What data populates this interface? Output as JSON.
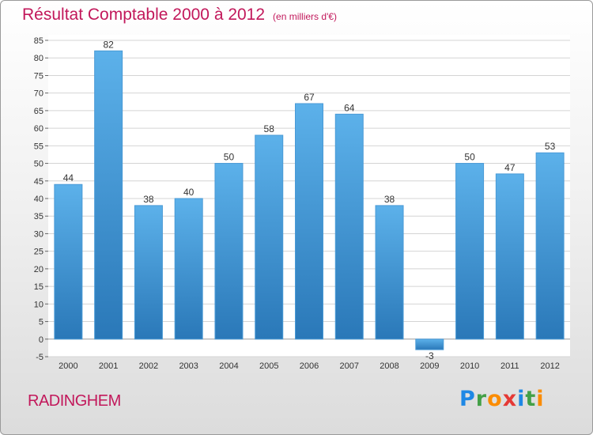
{
  "title": "Résultat Comptable 2000 à 2012",
  "title_unit": "(en milliers d'€)",
  "commune": "RADINGHEM",
  "logo": {
    "letters": [
      "P",
      "r",
      "o",
      "x",
      "i",
      "t",
      "i"
    ],
    "colors": [
      "#1e88e5",
      "#43a047",
      "#fb8c00",
      "#e53935",
      "#1e88e5",
      "#43a047",
      "#fb8c00"
    ]
  },
  "colors": {
    "title": "#c2185b",
    "bar_top": "#5cb1ea",
    "bar_bottom": "#2a78b8"
  },
  "chart_data": {
    "type": "bar",
    "categories": [
      "2000",
      "2001",
      "2002",
      "2003",
      "2004",
      "2005",
      "2006",
      "2007",
      "2008",
      "2009",
      "2010",
      "2011",
      "2012"
    ],
    "values": [
      44,
      82,
      38,
      40,
      50,
      58,
      67,
      64,
      38,
      -3,
      50,
      47,
      53
    ],
    "data_labels": [
      "44",
      "82",
      "38",
      "40",
      "50",
      "58",
      "67",
      "64",
      "38",
      "-3",
      "50",
      "47",
      "53"
    ],
    "ylim": [
      -5,
      85
    ],
    "yticks": [
      -5,
      0,
      5,
      10,
      15,
      20,
      25,
      30,
      35,
      40,
      45,
      50,
      55,
      60,
      65,
      70,
      75,
      80,
      85
    ],
    "grid": true
  }
}
